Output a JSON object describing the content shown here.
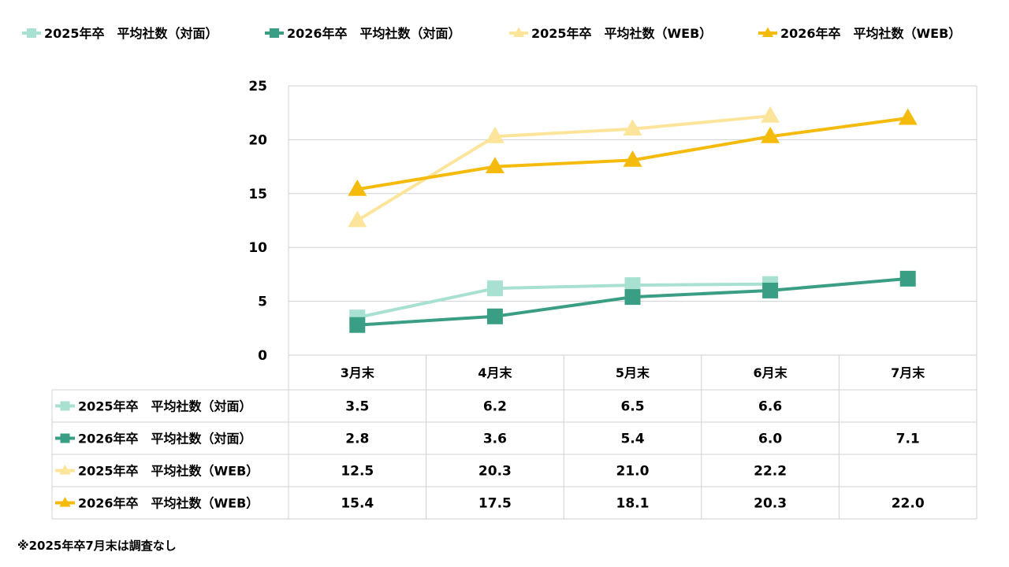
{
  "chart_data": {
    "type": "line",
    "categories": [
      "3月末",
      "4月末",
      "5月末",
      "6月末",
      "7月末"
    ],
    "ylim": [
      0,
      25
    ],
    "yticks": [
      0,
      5,
      10,
      15,
      20,
      25
    ],
    "grid": true,
    "legend_position": "top",
    "series": [
      {
        "name": "2025年卒　平均社数（対面）",
        "color": "#a8e0d2",
        "marker": "square",
        "values": [
          3.5,
          6.2,
          6.5,
          6.6,
          null
        ],
        "labels": [
          "3.5",
          "6.2",
          "6.5",
          "6.6",
          ""
        ]
      },
      {
        "name": "2026年卒　平均社数（対面）",
        "color": "#3a9e84",
        "marker": "square",
        "values": [
          2.8,
          3.6,
          5.4,
          6.0,
          7.1
        ],
        "labels": [
          "2.8",
          "3.6",
          "5.4",
          "6.0",
          "7.1"
        ]
      },
      {
        "name": "2025年卒　平均社数（WEB）",
        "color": "#fce59a",
        "marker": "triangle",
        "values": [
          12.5,
          20.3,
          21.0,
          22.2,
          null
        ],
        "labels": [
          "12.5",
          "20.3",
          "21.0",
          "22.2",
          ""
        ]
      },
      {
        "name": "2026年卒　平均社数（WEB）",
        "color": "#f5bb0c",
        "marker": "triangle",
        "values": [
          15.4,
          17.5,
          18.1,
          20.3,
          22.0
        ],
        "labels": [
          "15.4",
          "17.5",
          "18.1",
          "20.3",
          "22.0"
        ]
      }
    ]
  },
  "note": "※2025年卒7月末は調査なし"
}
